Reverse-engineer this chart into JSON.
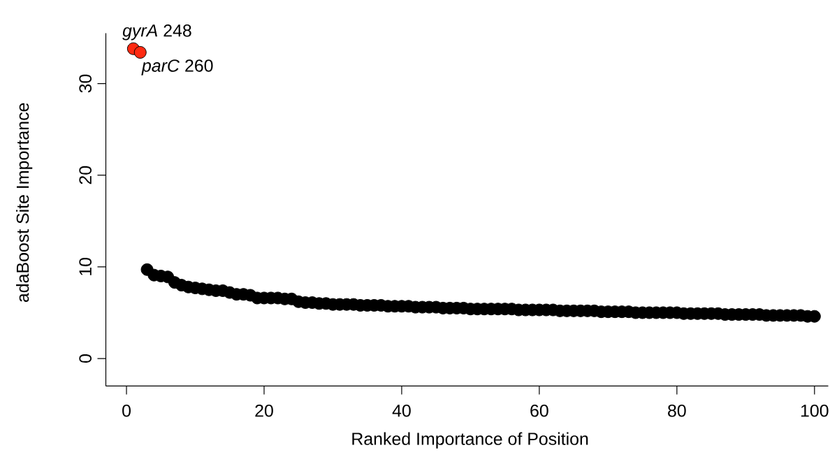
{
  "chart_data": {
    "type": "scatter",
    "xlabel": "Ranked Importance of Position",
    "ylabel": "adaBoost Site Importance",
    "x": [
      1,
      2,
      3,
      4,
      5,
      6,
      7,
      8,
      9,
      10,
      11,
      12,
      13,
      14,
      15,
      16,
      17,
      18,
      19,
      20,
      21,
      22,
      23,
      24,
      25,
      26,
      27,
      28,
      29,
      30,
      31,
      32,
      33,
      34,
      35,
      36,
      37,
      38,
      39,
      40,
      41,
      42,
      43,
      44,
      45,
      46,
      47,
      48,
      49,
      50,
      51,
      52,
      53,
      54,
      55,
      56,
      57,
      58,
      59,
      60,
      61,
      62,
      63,
      64,
      65,
      66,
      67,
      68,
      69,
      70,
      71,
      72,
      73,
      74,
      75,
      76,
      77,
      78,
      79,
      80,
      81,
      82,
      83,
      84,
      85,
      86,
      87,
      88,
      89,
      90,
      91,
      92,
      93,
      94,
      95,
      96,
      97,
      98,
      99,
      100
    ],
    "values": [
      33.8,
      33.4,
      9.7,
      9.1,
      9.0,
      8.9,
      8.3,
      8.0,
      7.8,
      7.7,
      7.6,
      7.5,
      7.4,
      7.4,
      7.2,
      7.0,
      7.0,
      6.9,
      6.6,
      6.6,
      6.6,
      6.6,
      6.5,
      6.5,
      6.2,
      6.1,
      6.1,
      6.0,
      6.0,
      5.9,
      5.9,
      5.9,
      5.9,
      5.8,
      5.8,
      5.8,
      5.8,
      5.7,
      5.7,
      5.7,
      5.7,
      5.6,
      5.6,
      5.6,
      5.6,
      5.5,
      5.5,
      5.5,
      5.5,
      5.4,
      5.4,
      5.4,
      5.4,
      5.4,
      5.4,
      5.4,
      5.3,
      5.3,
      5.3,
      5.3,
      5.3,
      5.3,
      5.2,
      5.2,
      5.2,
      5.2,
      5.2,
      5.2,
      5.1,
      5.1,
      5.1,
      5.1,
      5.1,
      5.0,
      5.0,
      5.0,
      5.0,
      5.0,
      5.0,
      5.0,
      4.9,
      4.9,
      4.9,
      4.9,
      4.9,
      4.9,
      4.8,
      4.8,
      4.8,
      4.8,
      4.8,
      4.8,
      4.7,
      4.7,
      4.7,
      4.7,
      4.7,
      4.7,
      4.6,
      4.6
    ],
    "colors": [
      "#ff2a12",
      "#ff2a12",
      "#000000",
      "#000000",
      "#000000",
      "#000000",
      "#000000",
      "#000000",
      "#000000",
      "#000000",
      "#000000",
      "#000000",
      "#000000",
      "#000000",
      "#000000",
      "#000000",
      "#000000",
      "#000000",
      "#000000",
      "#000000",
      "#000000",
      "#000000",
      "#000000",
      "#000000",
      "#000000",
      "#000000",
      "#000000",
      "#000000",
      "#000000",
      "#000000",
      "#000000",
      "#000000",
      "#000000",
      "#000000",
      "#000000",
      "#000000",
      "#000000",
      "#000000",
      "#000000",
      "#000000",
      "#000000",
      "#000000",
      "#000000",
      "#000000",
      "#000000",
      "#000000",
      "#000000",
      "#000000",
      "#000000",
      "#000000",
      "#000000",
      "#000000",
      "#000000",
      "#000000",
      "#000000",
      "#000000",
      "#000000",
      "#000000",
      "#000000",
      "#000000",
      "#000000",
      "#000000",
      "#000000",
      "#000000",
      "#000000",
      "#000000",
      "#000000",
      "#000000",
      "#000000",
      "#000000",
      "#000000",
      "#000000",
      "#000000",
      "#000000",
      "#000000",
      "#000000",
      "#000000",
      "#000000",
      "#000000",
      "#000000",
      "#000000",
      "#000000",
      "#000000",
      "#000000",
      "#000000",
      "#000000",
      "#000000",
      "#000000",
      "#000000",
      "#000000",
      "#000000",
      "#000000",
      "#000000",
      "#000000",
      "#000000",
      "#000000",
      "#000000",
      "#000000",
      "#000000",
      "#000000"
    ],
    "marker": "circle",
    "xlim": [
      -3,
      102
    ],
    "ylim": [
      -3,
      35.5
    ],
    "xticks": [
      0,
      20,
      40,
      60,
      80,
      100
    ],
    "yticks": [
      0,
      10,
      20,
      30
    ],
    "annotations": [
      {
        "text": "*gyrA* 248",
        "x": 1,
        "y": 33.8
      },
      {
        "text": "*parC* 260",
        "x": 2,
        "y": 33.4
      }
    ]
  }
}
